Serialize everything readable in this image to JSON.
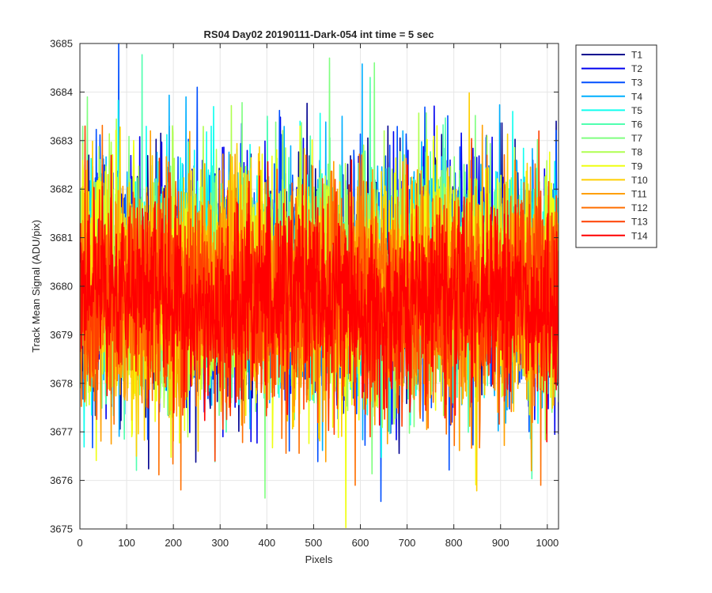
{
  "chart_data": {
    "type": "line",
    "title": "RS04 Day02 20190111-Dark-054 int time = 5 sec",
    "xlabel": "Pixels",
    "ylabel": "Track Mean Signal (ADU/pix)",
    "xlim": [
      0,
      1024
    ],
    "ylim": [
      3675,
      3685
    ],
    "xticks": [
      0,
      100,
      200,
      300,
      400,
      500,
      600,
      700,
      800,
      900,
      1000
    ],
    "yticks": [
      3675,
      3676,
      3677,
      3678,
      3679,
      3680,
      3681,
      3682,
      3683,
      3684,
      3685
    ],
    "grid": true,
    "legend_position": "outside-top-right",
    "n_points_per_series": 1024,
    "series": [
      {
        "name": "T1",
        "color": "#00008f",
        "mean": 3680.1,
        "std": 1.15,
        "peaks": [
          [
            18,
            3682.7
          ],
          [
            190,
            3683.3
          ],
          [
            1018,
            3683.4
          ],
          [
            140,
            3677.3
          ]
        ]
      },
      {
        "name": "T2",
        "color": "#0000ef",
        "mean": 3680.1,
        "std": 1.15,
        "peaks": [
          [
            42,
            3682.5
          ],
          [
            305,
            3676.9
          ],
          [
            365,
            3676.8
          ],
          [
            795,
            3677.2
          ]
        ]
      },
      {
        "name": "T3",
        "color": "#004fff",
        "mean": 3680.1,
        "std": 1.15,
        "peaks": [
          [
            250,
            3684.1
          ],
          [
            585,
            3682.8
          ],
          [
            988,
            3677.5
          ]
        ]
      },
      {
        "name": "T4",
        "color": "#00afff",
        "mean": 3680.1,
        "std": 1.15,
        "peaks": [
          [
            226,
            3683.9
          ],
          [
            560,
            3683.5
          ],
          [
            690,
            3683.2
          ]
        ]
      },
      {
        "name": "T5",
        "color": "#10ffef",
        "mean": 3680.1,
        "std": 1.15,
        "peaks": [
          [
            285,
            3683.7
          ],
          [
            470,
            3683.4
          ],
          [
            925,
            3683.6
          ]
        ]
      },
      {
        "name": "T6",
        "color": "#50ffaf",
        "mean": 3680.1,
        "std": 1.15,
        "peaks": [
          [
            620,
            3684.3
          ],
          [
            400,
            3683.5
          ]
        ]
      },
      {
        "name": "T7",
        "color": "#80ff80",
        "mean": 3680.1,
        "std": 1.15,
        "peaks": [
          [
            533,
            3684.7
          ],
          [
            15,
            3683.9
          ]
        ]
      },
      {
        "name": "T8",
        "color": "#afff50",
        "mean": 3680.1,
        "std": 1.15,
        "peaks": [
          [
            650,
            3683.2
          ],
          [
            870,
            3683.1
          ]
        ]
      },
      {
        "name": "T9",
        "color": "#efff10",
        "mean": 3680.0,
        "std": 1.15,
        "peaks": [
          [
            110,
            3676.9
          ],
          [
            470,
            3683.3
          ]
        ]
      },
      {
        "name": "T10",
        "color": "#ffcf00",
        "mean": 3679.9,
        "std": 1.15,
        "peaks": [
          [
            252,
            3676.6
          ],
          [
            120,
            3676.5
          ]
        ]
      },
      {
        "name": "T11",
        "color": "#ff9f00",
        "mean": 3679.8,
        "std": 1.1,
        "peaks": [
          [
            150,
            3683.2
          ],
          [
            965,
            3676.2
          ]
        ]
      },
      {
        "name": "T12",
        "color": "#ff6f00",
        "mean": 3679.8,
        "std": 1.1,
        "peaks": [
          [
            588,
            3675.9
          ],
          [
            985,
            3675.9
          ],
          [
            870,
            3682.7
          ]
        ]
      },
      {
        "name": "T13",
        "color": "#ff3f00",
        "mean": 3679.7,
        "std": 1.05,
        "peaks": [
          [
            288,
            3676.4
          ],
          [
            620,
            3676.9
          ],
          [
            10,
            3683.3
          ]
        ]
      },
      {
        "name": "T14",
        "color": "#ff0000",
        "mean": 3679.7,
        "std": 0.9,
        "peaks": [
          [
            580,
            3682.6
          ],
          [
            700,
            3682.5
          ]
        ]
      }
    ]
  }
}
